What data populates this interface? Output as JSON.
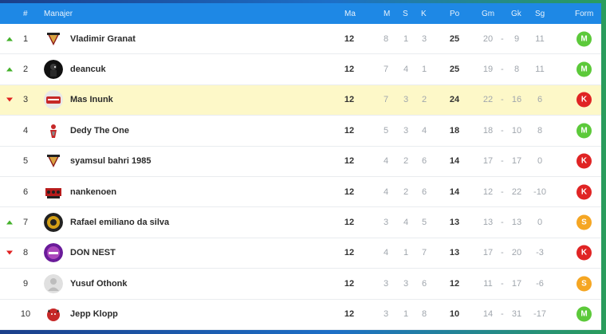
{
  "header": {
    "rank": "#",
    "manager": "Manajer",
    "played": "Ma",
    "won": "M",
    "drawn": "S",
    "lost": "K",
    "points": "Po",
    "goals_for": "Gm",
    "goals_against": "Gk",
    "goal_diff": "Sg",
    "form": "Form"
  },
  "rows": [
    {
      "pos": "1",
      "trend": "up",
      "name": "Vladimir Granat",
      "ma": "12",
      "m": "8",
      "s": "1",
      "k": "3",
      "po": "25",
      "gm": "20",
      "gk": "9",
      "sg": "11",
      "form": "M",
      "avatar": "shield-emblem"
    },
    {
      "pos": "2",
      "trend": "up",
      "name": "deancuk",
      "ma": "12",
      "m": "7",
      "s": "4",
      "k": "1",
      "po": "25",
      "gm": "19",
      "gk": "8",
      "sg": "11",
      "form": "M",
      "avatar": "dark-figure"
    },
    {
      "pos": "3",
      "trend": "down",
      "name": "Mas Inunk",
      "ma": "12",
      "m": "7",
      "s": "3",
      "k": "2",
      "po": "24",
      "gm": "22",
      "gk": "16",
      "sg": "6",
      "form": "K",
      "avatar": "red-badge",
      "highlight": true
    },
    {
      "pos": "4",
      "trend": "",
      "name": "Dedy The One",
      "ma": "12",
      "m": "5",
      "s": "3",
      "k": "4",
      "po": "18",
      "gm": "18",
      "gk": "10",
      "sg": "8",
      "form": "M",
      "avatar": "red-figure"
    },
    {
      "pos": "5",
      "trend": "",
      "name": "syamsul bahri 1985",
      "ma": "12",
      "m": "4",
      "s": "2",
      "k": "6",
      "po": "14",
      "gm": "17",
      "gk": "17",
      "sg": "0",
      "form": "K",
      "avatar": "shield-emblem"
    },
    {
      "pos": "6",
      "trend": "",
      "name": "nankenoen",
      "ma": "12",
      "m": "4",
      "s": "2",
      "k": "6",
      "po": "14",
      "gm": "12",
      "gk": "22",
      "sg": "-10",
      "form": "K",
      "avatar": "crowd-badge"
    },
    {
      "pos": "7",
      "trend": "up",
      "name": "Rafael emiliano da silva",
      "ma": "12",
      "m": "3",
      "s": "4",
      "k": "5",
      "po": "13",
      "gm": "13",
      "gk": "13",
      "sg": "0",
      "form": "S",
      "avatar": "gold-coin"
    },
    {
      "pos": "8",
      "trend": "down",
      "name": "DON NEST",
      "ma": "12",
      "m": "4",
      "s": "1",
      "k": "7",
      "po": "13",
      "gm": "17",
      "gk": "20",
      "sg": "-3",
      "form": "K",
      "avatar": "purple-badge"
    },
    {
      "pos": "9",
      "trend": "",
      "name": "Yusuf Othonk",
      "ma": "12",
      "m": "3",
      "s": "3",
      "k": "6",
      "po": "12",
      "gm": "11",
      "gk": "17",
      "sg": "-6",
      "form": "S",
      "avatar": "default-user"
    },
    {
      "pos": "10",
      "trend": "",
      "name": "Jepp Klopp",
      "ma": "12",
      "m": "3",
      "s": "1",
      "k": "8",
      "po": "10",
      "gm": "14",
      "gk": "31",
      "sg": "-17",
      "form": "M",
      "avatar": "red-devil"
    }
  ],
  "colors": {
    "header_bg": "#1e88e5",
    "highlight_row": "#fdf8c8",
    "form_M": "#5cc93a",
    "form_K": "#e02424",
    "form_S": "#f5a623",
    "trend_up": "#43b02a",
    "trend_down": "#e02020"
  }
}
